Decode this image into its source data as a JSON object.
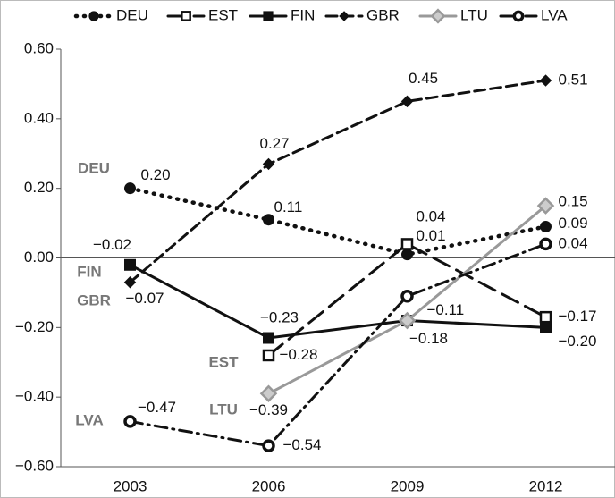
{
  "chart_data": {
    "type": "line",
    "categories": [
      "2003",
      "2006",
      "2009",
      "2012"
    ],
    "ylim": [
      -0.6,
      0.6
    ],
    "yticks": [
      {
        "value": 0.6,
        "label": "0.60"
      },
      {
        "value": 0.4,
        "label": "0.40"
      },
      {
        "value": 0.2,
        "label": "0.20"
      },
      {
        "value": 0,
        "label": "0.00"
      },
      {
        "value": -0.2,
        "label": "−0.20"
      },
      {
        "value": -0.4,
        "label": "−0.40"
      },
      {
        "value": -0.6,
        "label": "−0.60"
      }
    ],
    "series": [
      {
        "name": "DEU",
        "color": "#111111",
        "line_style": "dotted",
        "marker": "circle",
        "values": [
          0.2,
          0.11,
          0.01,
          0.09
        ],
        "value_labels": [
          "0.20",
          "0.11",
          "0.01",
          "0.09"
        ]
      },
      {
        "name": "EST",
        "color": "#111111",
        "line_style": "long-dash",
        "marker": "open-square",
        "values": [
          null,
          -0.28,
          0.04,
          -0.17
        ],
        "value_labels": [
          null,
          "−0.28",
          "0.04",
          "−0.17"
        ]
      },
      {
        "name": "FIN",
        "color": "#111111",
        "line_style": "solid",
        "marker": "square",
        "values": [
          -0.02,
          -0.23,
          -0.18,
          -0.2
        ],
        "value_labels": [
          "−0.02",
          "−0.23",
          null,
          "−0.20"
        ]
      },
      {
        "name": "GBR",
        "color": "#111111",
        "line_style": "dash",
        "marker": "diamond",
        "values": [
          -0.07,
          0.27,
          0.45,
          0.51
        ],
        "value_labels": [
          "−0.07",
          "0.27",
          "0.45",
          "0.51"
        ]
      },
      {
        "name": "LTU",
        "color": "#999999",
        "line_style": "solid",
        "marker": "open-diamond",
        "values": [
          null,
          -0.39,
          -0.18,
          0.15
        ],
        "value_labels": [
          null,
          "−0.39",
          "−0.18",
          "0.15"
        ]
      },
      {
        "name": "LVA",
        "color": "#111111",
        "line_style": "dash-dot",
        "marker": "open-circle",
        "values": [
          -0.47,
          -0.54,
          -0.11,
          0.04
        ],
        "value_labels": [
          "−0.47",
          "−0.54",
          "−0.11",
          "0.04"
        ]
      }
    ]
  }
}
